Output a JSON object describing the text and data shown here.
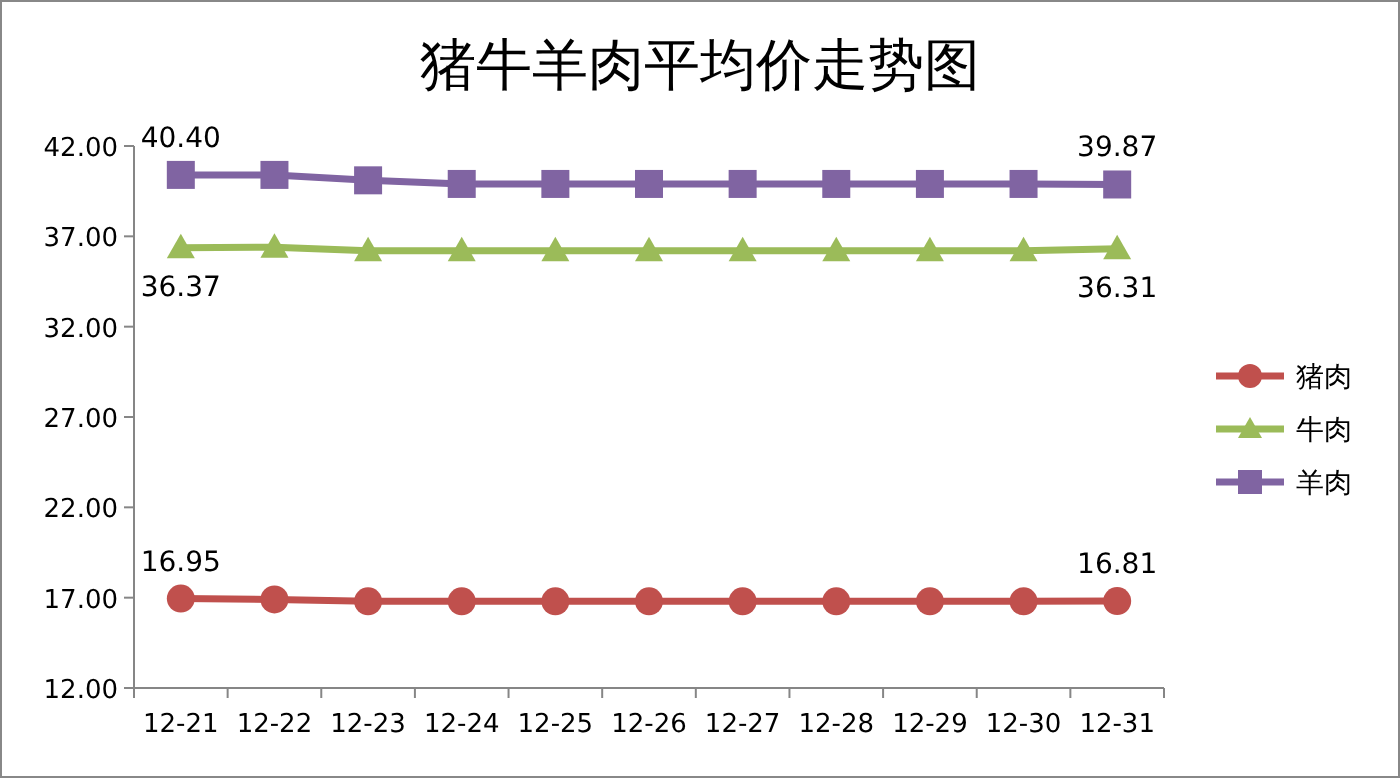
{
  "chart_data": {
    "type": "line",
    "title": "猪牛羊肉平均价走势图",
    "categories": [
      "12-21",
      "12-22",
      "12-23",
      "12-24",
      "12-25",
      "12-26",
      "12-27",
      "12-28",
      "12-29",
      "12-30",
      "12-31"
    ],
    "series": [
      {
        "name": "猪肉",
        "color": "#c0504d",
        "marker": "circle",
        "values": [
          16.95,
          16.9,
          16.8,
          16.8,
          16.8,
          16.8,
          16.8,
          16.8,
          16.8,
          16.8,
          16.81
        ],
        "value_labels": [
          "16.95",
          null,
          null,
          null,
          null,
          null,
          null,
          null,
          null,
          null,
          "16.81"
        ]
      },
      {
        "name": "牛肉",
        "color": "#9bbb59",
        "marker": "triangle",
        "values": [
          36.37,
          36.4,
          36.2,
          36.2,
          36.2,
          36.2,
          36.2,
          36.2,
          36.2,
          36.2,
          36.31
        ],
        "value_labels": [
          "36.37",
          null,
          null,
          null,
          null,
          null,
          null,
          null,
          null,
          null,
          "36.31"
        ]
      },
      {
        "name": "羊肉",
        "color": "#8064a2",
        "marker": "square",
        "values": [
          40.4,
          40.4,
          40.1,
          39.9,
          39.9,
          39.9,
          39.9,
          39.9,
          39.9,
          39.9,
          39.87
        ],
        "value_labels": [
          "40.40",
          null,
          null,
          null,
          null,
          null,
          null,
          null,
          null,
          null,
          "39.87"
        ]
      }
    ],
    "ylim": [
      12,
      42
    ],
    "yticks": [
      {
        "value": 12,
        "label": "12.00"
      },
      {
        "value": 17,
        "label": "17.00"
      },
      {
        "value": 22,
        "label": "22.00"
      },
      {
        "value": 27,
        "label": "27.00"
      },
      {
        "value": 32,
        "label": "32.00"
      },
      {
        "value": 37,
        "label": "37.00"
      },
      {
        "value": 42,
        "label": "42.00"
      }
    ],
    "grid": false,
    "legend": "right",
    "line_style": "solid"
  }
}
